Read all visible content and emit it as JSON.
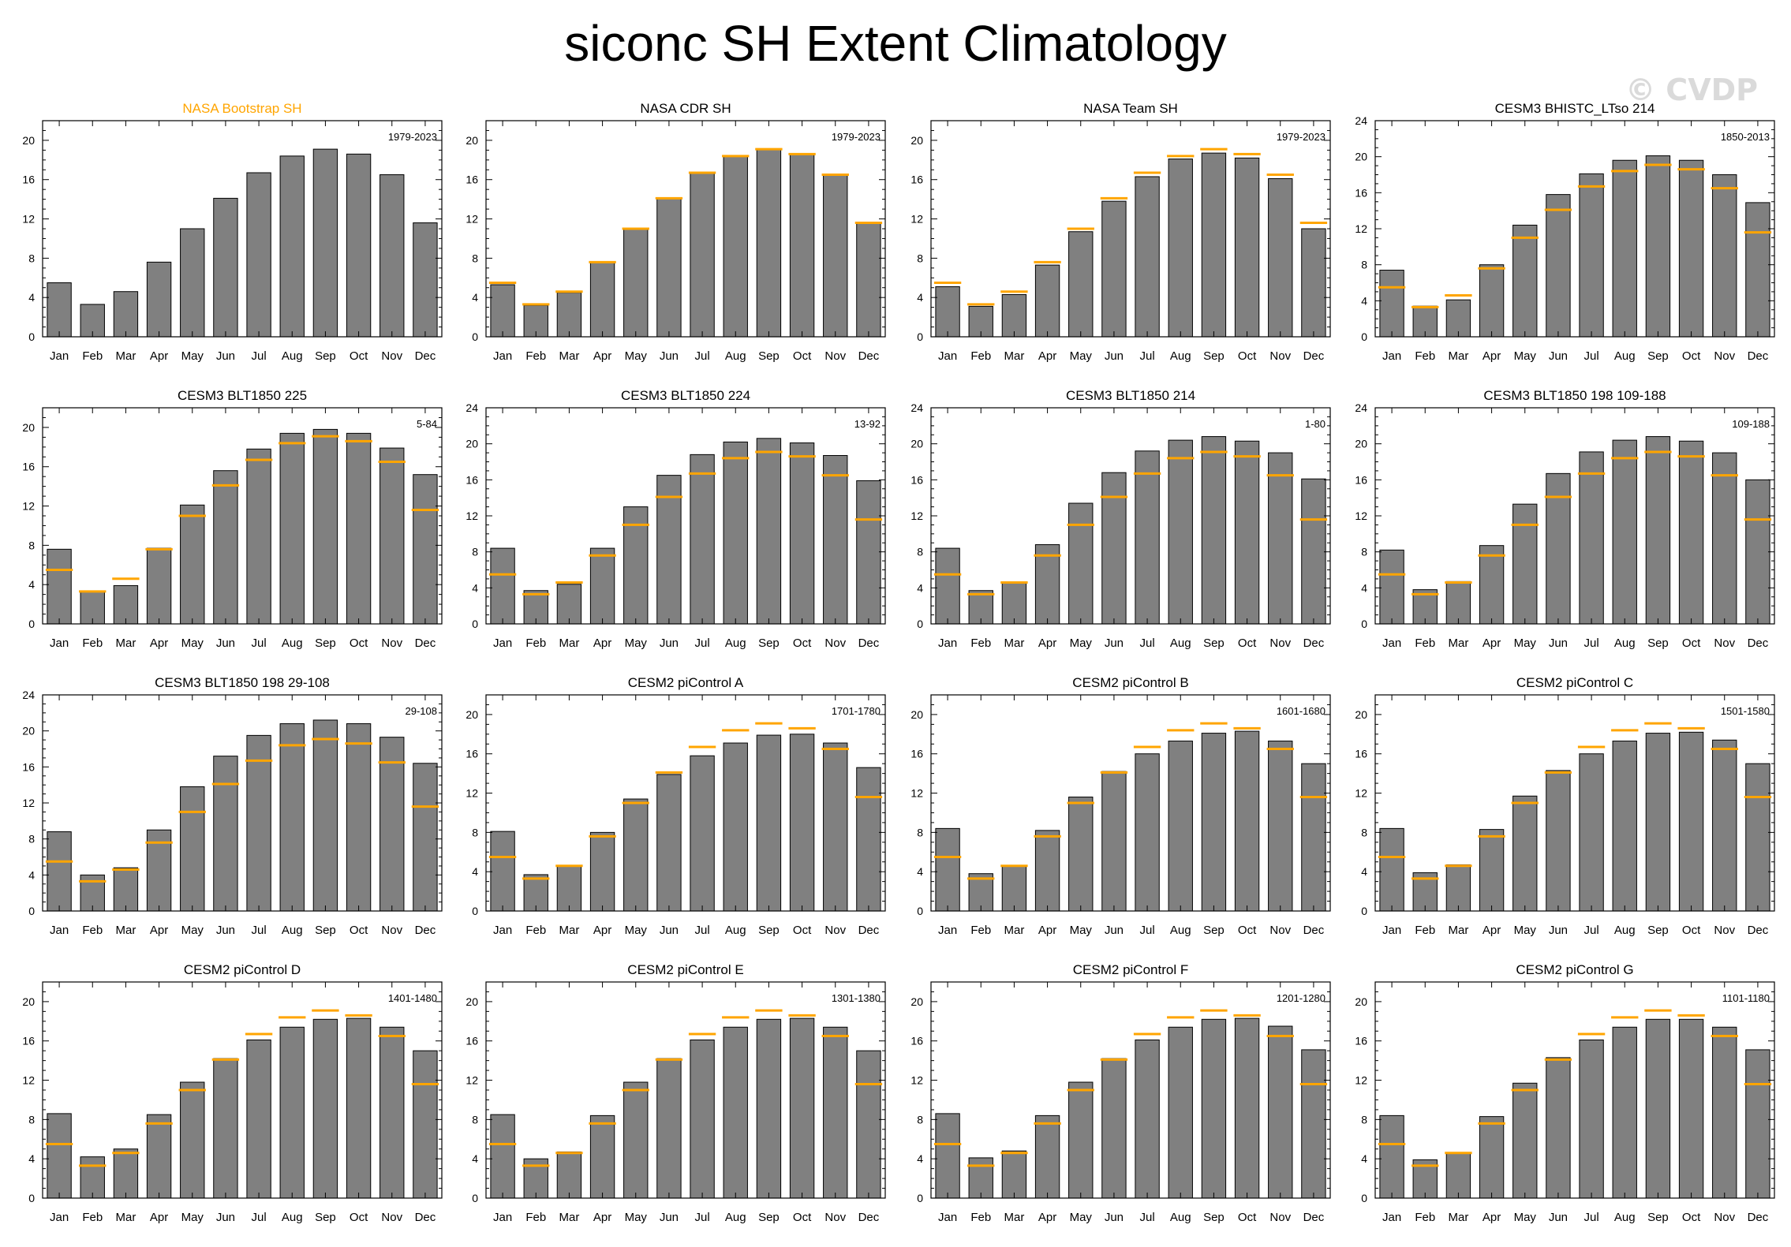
{
  "title": "siconc SH Extent Climatology",
  "watermark": "© CVDP",
  "colors": {
    "bar": "#808080",
    "obs_marker": "#ffa500",
    "obs_title": "#ffa500"
  },
  "chart_data": [
    {
      "type": "bar",
      "title": "NASA Bootstrap SH",
      "period": "1979-2023",
      "is_obs": true,
      "ylim": [
        0,
        22
      ],
      "yticks": [
        0,
        4,
        8,
        12,
        16,
        20
      ],
      "categories": [
        "Jan",
        "Feb",
        "Mar",
        "Apr",
        "May",
        "Jun",
        "Jul",
        "Aug",
        "Sep",
        "Oct",
        "Nov",
        "Dec"
      ],
      "values": [
        5.5,
        3.3,
        4.6,
        7.6,
        11.0,
        14.1,
        16.7,
        18.4,
        19.1,
        18.6,
        16.5,
        11.6
      ],
      "reference": []
    },
    {
      "type": "bar",
      "title": "NASA CDR SH",
      "period": "1979-2023",
      "is_obs": false,
      "ylim": [
        0,
        22
      ],
      "yticks": [
        0,
        4,
        8,
        12,
        16,
        20
      ],
      "categories": [
        "Jan",
        "Feb",
        "Mar",
        "Apr",
        "May",
        "Jun",
        "Jul",
        "Aug",
        "Sep",
        "Oct",
        "Nov",
        "Dec"
      ],
      "values": [
        5.3,
        3.2,
        4.5,
        7.6,
        11.0,
        14.1,
        16.7,
        18.4,
        19.1,
        18.6,
        16.5,
        11.6
      ],
      "reference": [
        5.5,
        3.3,
        4.6,
        7.6,
        11.0,
        14.1,
        16.7,
        18.4,
        19.1,
        18.6,
        16.5,
        11.6
      ]
    },
    {
      "type": "bar",
      "title": "NASA Team SH",
      "period": "1979-2023",
      "is_obs": false,
      "ylim": [
        0,
        22
      ],
      "yticks": [
        0,
        4,
        8,
        12,
        16,
        20
      ],
      "categories": [
        "Jan",
        "Feb",
        "Mar",
        "Apr",
        "May",
        "Jun",
        "Jul",
        "Aug",
        "Sep",
        "Oct",
        "Nov",
        "Dec"
      ],
      "values": [
        5.1,
        3.1,
        4.3,
        7.3,
        10.7,
        13.8,
        16.3,
        18.1,
        18.7,
        18.2,
        16.1,
        11.0
      ],
      "reference": [
        5.5,
        3.3,
        4.6,
        7.6,
        11.0,
        14.1,
        16.7,
        18.4,
        19.1,
        18.6,
        16.5,
        11.6
      ]
    },
    {
      "type": "bar",
      "title": "CESM3 BHISTC_LTso 214",
      "period": "1850-2013",
      "is_obs": false,
      "ylim": [
        0,
        24
      ],
      "yticks": [
        0,
        4,
        8,
        12,
        16,
        20,
        24
      ],
      "categories": [
        "Jan",
        "Feb",
        "Mar",
        "Apr",
        "May",
        "Jun",
        "Jul",
        "Aug",
        "Sep",
        "Oct",
        "Nov",
        "Dec"
      ],
      "values": [
        7.4,
        3.4,
        4.1,
        8.0,
        12.4,
        15.8,
        18.1,
        19.6,
        20.1,
        19.6,
        18.0,
        14.9
      ],
      "reference": [
        5.5,
        3.3,
        4.6,
        7.6,
        11.0,
        14.1,
        16.7,
        18.4,
        19.1,
        18.6,
        16.5,
        11.6
      ]
    },
    {
      "type": "bar",
      "title": "CESM3 BLT1850 225",
      "period": "5-84",
      "is_obs": false,
      "ylim": [
        0,
        22
      ],
      "yticks": [
        0,
        4,
        8,
        12,
        16,
        20
      ],
      "categories": [
        "Jan",
        "Feb",
        "Mar",
        "Apr",
        "May",
        "Jun",
        "Jul",
        "Aug",
        "Sep",
        "Oct",
        "Nov",
        "Dec"
      ],
      "values": [
        7.6,
        3.3,
        3.9,
        7.7,
        12.1,
        15.6,
        17.8,
        19.4,
        19.8,
        19.4,
        17.9,
        15.2
      ],
      "reference": [
        5.5,
        3.3,
        4.6,
        7.6,
        11.0,
        14.1,
        16.7,
        18.4,
        19.1,
        18.6,
        16.5,
        11.6
      ]
    },
    {
      "type": "bar",
      "title": "CESM3 BLT1850 224",
      "period": "13-92",
      "is_obs": false,
      "ylim": [
        0,
        24
      ],
      "yticks": [
        0,
        4,
        8,
        12,
        16,
        20,
        24
      ],
      "categories": [
        "Jan",
        "Feb",
        "Mar",
        "Apr",
        "May",
        "Jun",
        "Jul",
        "Aug",
        "Sep",
        "Oct",
        "Nov",
        "Dec"
      ],
      "values": [
        8.4,
        3.7,
        4.4,
        8.4,
        13.0,
        16.5,
        18.8,
        20.2,
        20.6,
        20.1,
        18.7,
        15.9
      ],
      "reference": [
        5.5,
        3.3,
        4.6,
        7.6,
        11.0,
        14.1,
        16.7,
        18.4,
        19.1,
        18.6,
        16.5,
        11.6
      ]
    },
    {
      "type": "bar",
      "title": "CESM3 BLT1850 214",
      "period": "1-80",
      "is_obs": false,
      "ylim": [
        0,
        24
      ],
      "yticks": [
        0,
        4,
        8,
        12,
        16,
        20,
        24
      ],
      "categories": [
        "Jan",
        "Feb",
        "Mar",
        "Apr",
        "May",
        "Jun",
        "Jul",
        "Aug",
        "Sep",
        "Oct",
        "Nov",
        "Dec"
      ],
      "values": [
        8.4,
        3.7,
        4.6,
        8.8,
        13.4,
        16.8,
        19.2,
        20.4,
        20.8,
        20.3,
        19.0,
        16.1
      ],
      "reference": [
        5.5,
        3.3,
        4.6,
        7.6,
        11.0,
        14.1,
        16.7,
        18.4,
        19.1,
        18.6,
        16.5,
        11.6
      ]
    },
    {
      "type": "bar",
      "title": "CESM3 BLT1850 198 109-188",
      "period": "109-188",
      "is_obs": false,
      "ylim": [
        0,
        24
      ],
      "yticks": [
        0,
        4,
        8,
        12,
        16,
        20,
        24
      ],
      "categories": [
        "Jan",
        "Feb",
        "Mar",
        "Apr",
        "May",
        "Jun",
        "Jul",
        "Aug",
        "Sep",
        "Oct",
        "Nov",
        "Dec"
      ],
      "values": [
        8.2,
        3.8,
        4.7,
        8.7,
        13.3,
        16.7,
        19.1,
        20.4,
        20.8,
        20.3,
        19.0,
        16.0
      ],
      "reference": [
        5.5,
        3.3,
        4.6,
        7.6,
        11.0,
        14.1,
        16.7,
        18.4,
        19.1,
        18.6,
        16.5,
        11.6
      ]
    },
    {
      "type": "bar",
      "title": "CESM3 BLT1850 198 29-108",
      "period": "29-108",
      "is_obs": false,
      "ylim": [
        0,
        24
      ],
      "yticks": [
        0,
        4,
        8,
        12,
        16,
        20,
        24
      ],
      "categories": [
        "Jan",
        "Feb",
        "Mar",
        "Apr",
        "May",
        "Jun",
        "Jul",
        "Aug",
        "Sep",
        "Oct",
        "Nov",
        "Dec"
      ],
      "values": [
        8.8,
        4.0,
        4.8,
        9.0,
        13.8,
        17.2,
        19.5,
        20.8,
        21.2,
        20.8,
        19.3,
        16.4
      ],
      "reference": [
        5.5,
        3.3,
        4.6,
        7.6,
        11.0,
        14.1,
        16.7,
        18.4,
        19.1,
        18.6,
        16.5,
        11.6
      ]
    },
    {
      "type": "bar",
      "title": "CESM2 piControl A",
      "period": "1701-1780",
      "is_obs": false,
      "ylim": [
        0,
        22
      ],
      "yticks": [
        0,
        4,
        8,
        12,
        16,
        20
      ],
      "categories": [
        "Jan",
        "Feb",
        "Mar",
        "Apr",
        "May",
        "Jun",
        "Jul",
        "Aug",
        "Sep",
        "Oct",
        "Nov",
        "Dec"
      ],
      "values": [
        8.1,
        3.7,
        4.6,
        8.0,
        11.4,
        13.9,
        15.8,
        17.1,
        17.9,
        18.0,
        17.1,
        14.6
      ],
      "reference": [
        5.5,
        3.3,
        4.6,
        7.6,
        11.0,
        14.1,
        16.7,
        18.4,
        19.1,
        18.6,
        16.5,
        11.6
      ]
    },
    {
      "type": "bar",
      "title": "CESM2 piControl B",
      "period": "1601-1680",
      "is_obs": false,
      "ylim": [
        0,
        22
      ],
      "yticks": [
        0,
        4,
        8,
        12,
        16,
        20
      ],
      "categories": [
        "Jan",
        "Feb",
        "Mar",
        "Apr",
        "May",
        "Jun",
        "Jul",
        "Aug",
        "Sep",
        "Oct",
        "Nov",
        "Dec"
      ],
      "values": [
        8.4,
        3.8,
        4.6,
        8.2,
        11.6,
        14.2,
        16.0,
        17.3,
        18.1,
        18.3,
        17.3,
        15.0
      ],
      "reference": [
        5.5,
        3.3,
        4.6,
        7.6,
        11.0,
        14.1,
        16.7,
        18.4,
        19.1,
        18.6,
        16.5,
        11.6
      ]
    },
    {
      "type": "bar",
      "title": "CESM2 piControl C",
      "period": "1501-1580",
      "is_obs": false,
      "ylim": [
        0,
        22
      ],
      "yticks": [
        0,
        4,
        8,
        12,
        16,
        20
      ],
      "categories": [
        "Jan",
        "Feb",
        "Mar",
        "Apr",
        "May",
        "Jun",
        "Jul",
        "Aug",
        "Sep",
        "Oct",
        "Nov",
        "Dec"
      ],
      "values": [
        8.4,
        3.9,
        4.7,
        8.3,
        11.7,
        14.3,
        16.0,
        17.3,
        18.1,
        18.2,
        17.4,
        15.0
      ],
      "reference": [
        5.5,
        3.3,
        4.6,
        7.6,
        11.0,
        14.1,
        16.7,
        18.4,
        19.1,
        18.6,
        16.5,
        11.6
      ]
    },
    {
      "type": "bar",
      "title": "CESM2 piControl D",
      "period": "1401-1480",
      "is_obs": false,
      "ylim": [
        0,
        22
      ],
      "yticks": [
        0,
        4,
        8,
        12,
        16,
        20
      ],
      "categories": [
        "Jan",
        "Feb",
        "Mar",
        "Apr",
        "May",
        "Jun",
        "Jul",
        "Aug",
        "Sep",
        "Oct",
        "Nov",
        "Dec"
      ],
      "values": [
        8.6,
        4.2,
        5.0,
        8.5,
        11.8,
        14.2,
        16.1,
        17.4,
        18.2,
        18.3,
        17.4,
        15.0
      ],
      "reference": [
        5.5,
        3.3,
        4.6,
        7.6,
        11.0,
        14.1,
        16.7,
        18.4,
        19.1,
        18.6,
        16.5,
        11.6
      ]
    },
    {
      "type": "bar",
      "title": "CESM2 piControl E",
      "period": "1301-1380",
      "is_obs": false,
      "ylim": [
        0,
        22
      ],
      "yticks": [
        0,
        4,
        8,
        12,
        16,
        20
      ],
      "categories": [
        "Jan",
        "Feb",
        "Mar",
        "Apr",
        "May",
        "Jun",
        "Jul",
        "Aug",
        "Sep",
        "Oct",
        "Nov",
        "Dec"
      ],
      "values": [
        8.5,
        4.0,
        4.7,
        8.4,
        11.8,
        14.2,
        16.1,
        17.4,
        18.2,
        18.3,
        17.4,
        15.0
      ],
      "reference": [
        5.5,
        3.3,
        4.6,
        7.6,
        11.0,
        14.1,
        16.7,
        18.4,
        19.1,
        18.6,
        16.5,
        11.6
      ]
    },
    {
      "type": "bar",
      "title": "CESM2 piControl F",
      "period": "1201-1280",
      "is_obs": false,
      "ylim": [
        0,
        22
      ],
      "yticks": [
        0,
        4,
        8,
        12,
        16,
        20
      ],
      "categories": [
        "Jan",
        "Feb",
        "Mar",
        "Apr",
        "May",
        "Jun",
        "Jul",
        "Aug",
        "Sep",
        "Oct",
        "Nov",
        "Dec"
      ],
      "values": [
        8.6,
        4.1,
        4.8,
        8.4,
        11.8,
        14.2,
        16.1,
        17.4,
        18.2,
        18.3,
        17.5,
        15.1
      ],
      "reference": [
        5.5,
        3.3,
        4.6,
        7.6,
        11.0,
        14.1,
        16.7,
        18.4,
        19.1,
        18.6,
        16.5,
        11.6
      ]
    },
    {
      "type": "bar",
      "title": "CESM2 piControl G",
      "period": "1101-1180",
      "is_obs": false,
      "ylim": [
        0,
        22
      ],
      "yticks": [
        0,
        4,
        8,
        12,
        16,
        20
      ],
      "categories": [
        "Jan",
        "Feb",
        "Mar",
        "Apr",
        "May",
        "Jun",
        "Jul",
        "Aug",
        "Sep",
        "Oct",
        "Nov",
        "Dec"
      ],
      "values": [
        8.4,
        3.9,
        4.6,
        8.3,
        11.7,
        14.3,
        16.1,
        17.4,
        18.2,
        18.2,
        17.4,
        15.1
      ],
      "reference": [
        5.5,
        3.3,
        4.6,
        7.6,
        11.0,
        14.1,
        16.7,
        18.4,
        19.1,
        18.6,
        16.5,
        11.6
      ]
    }
  ]
}
